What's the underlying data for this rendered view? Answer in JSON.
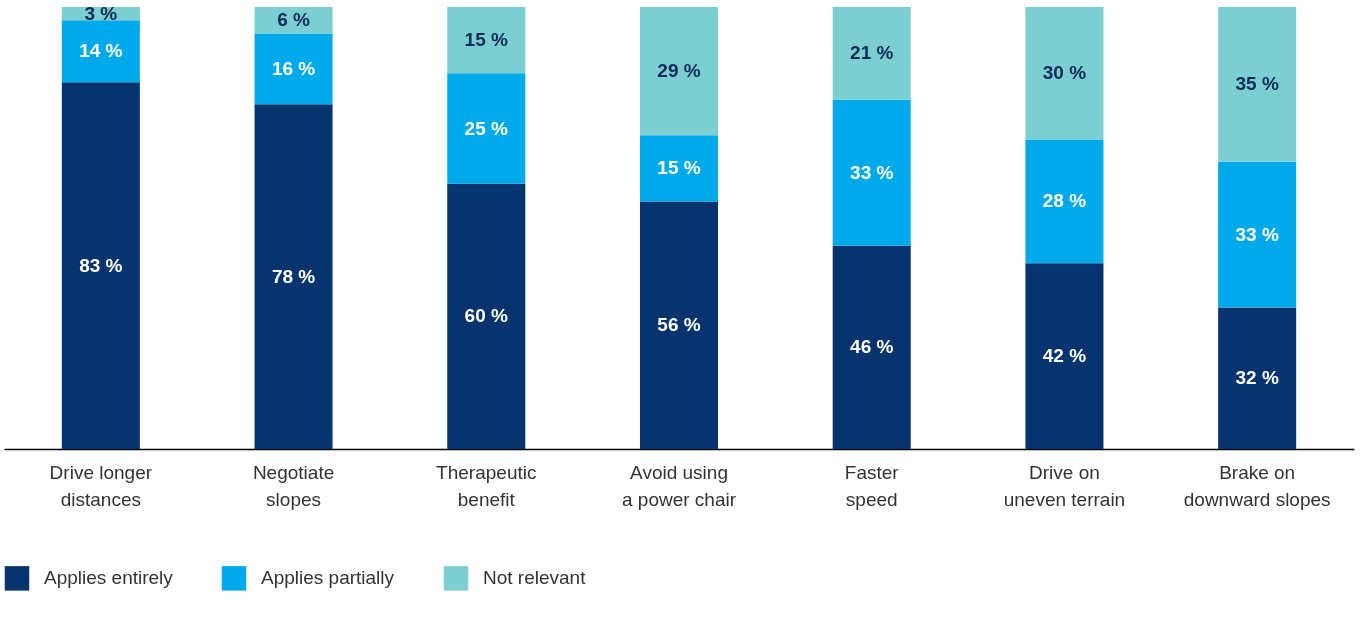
{
  "chart_data": {
    "type": "bar",
    "stacked": true,
    "categories": [
      "Drive longer distances",
      "Negotiate slopes",
      "Therapeutic benefit",
      "Avoid using a power chair",
      "Faster speed",
      "Drive on uneven terrain",
      "Brake on downward slopes"
    ],
    "series": [
      {
        "name": "Applies entirely",
        "color": "#07336e",
        "values": [
          83,
          78,
          60,
          56,
          46,
          42,
          32
        ],
        "value_labels": [
          "83 %",
          "78 %",
          "60 %",
          "56 %",
          "46 %",
          "42 %",
          "32 %"
        ]
      },
      {
        "name": "Applies partially",
        "color": "#00aaea",
        "values": [
          14,
          16,
          25,
          15,
          33,
          28,
          33
        ],
        "value_labels": [
          "14 %",
          "16 %",
          "25 %",
          "15 %",
          "33 %",
          "28 %",
          "33 %"
        ]
      },
      {
        "name": "Not relevant",
        "color": "#7ccfd0",
        "values": [
          3,
          6,
          15,
          29,
          21,
          30,
          35
        ],
        "value_labels": [
          "3 %",
          "6 %",
          "15 %",
          "29 %",
          "21 %",
          "30 %",
          "35 %"
        ]
      }
    ],
    "ylim": [
      0,
      100
    ],
    "legend": "bottom left",
    "grid": false,
    "tick_labels": "x"
  }
}
